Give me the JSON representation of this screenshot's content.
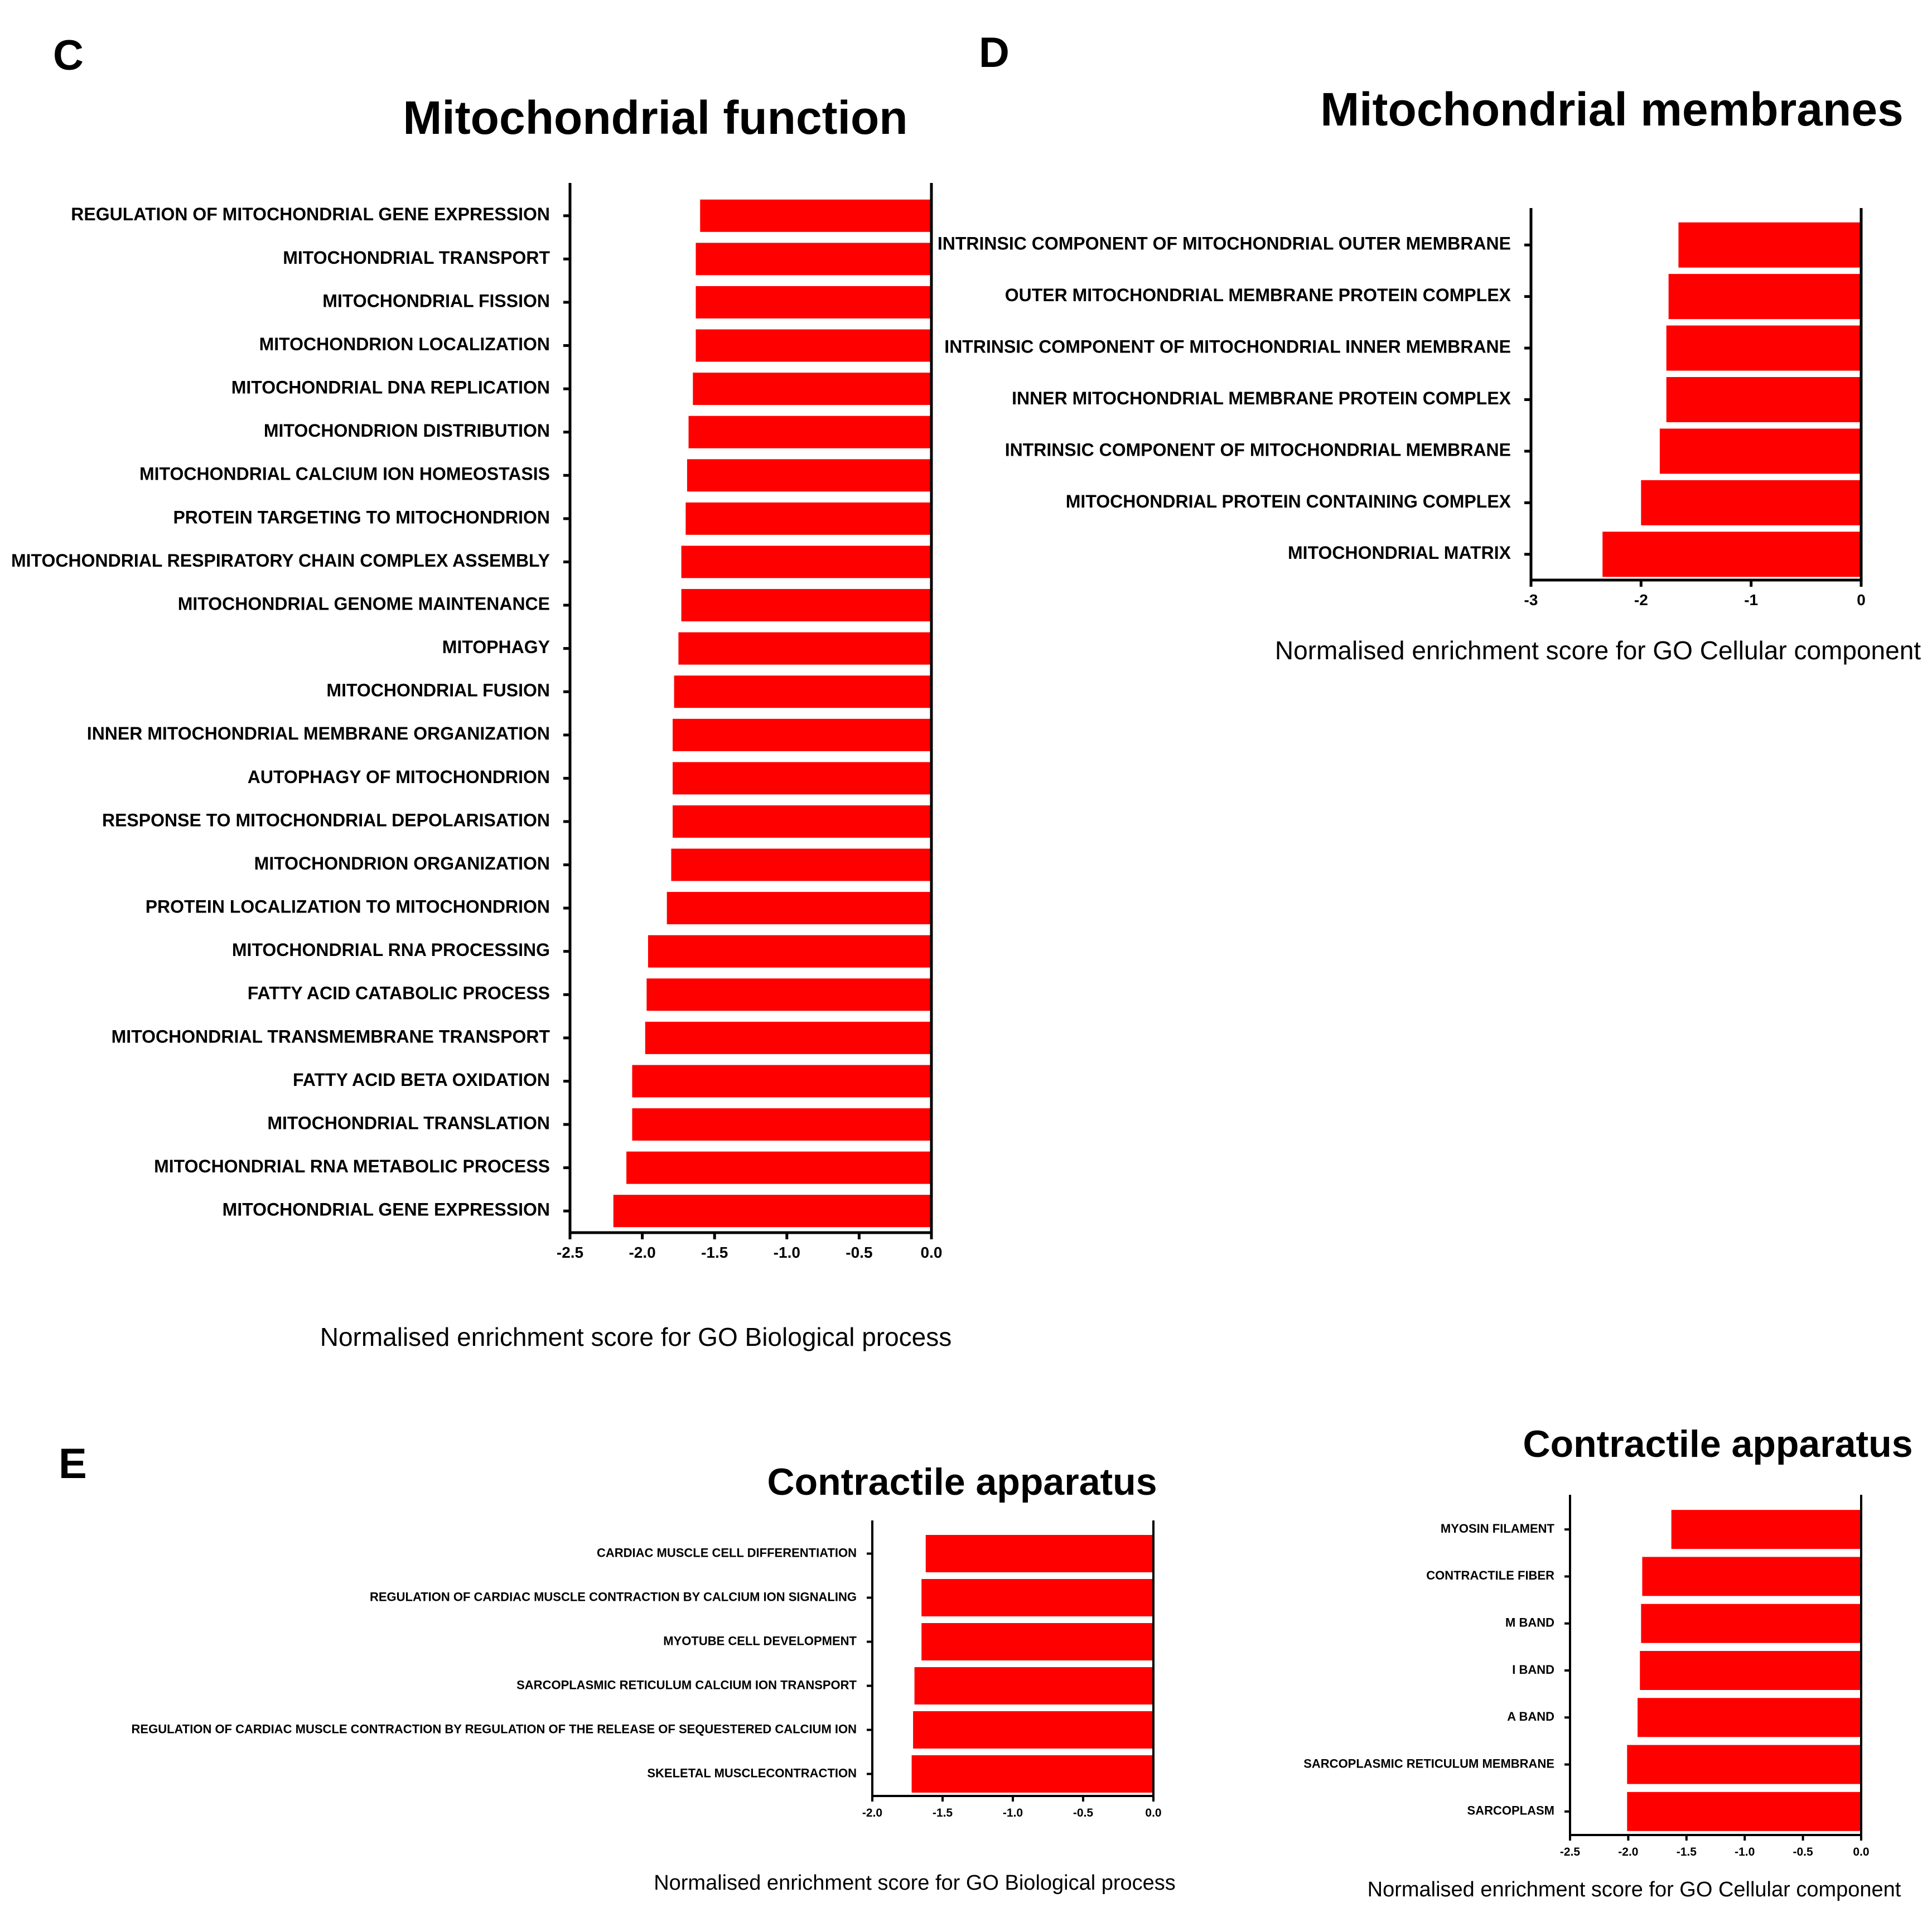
{
  "colors": {
    "bar": "#ff0000",
    "axis": "#000000",
    "background": "#ffffff"
  },
  "chart_data": [
    {
      "panel": "C",
      "type": "bar",
      "orientation": "horizontal",
      "title": "Mitochondrial function",
      "xlabel": "Normalised enrichment score for GO Biological process",
      "xlim": [
        -2.5,
        0.0
      ],
      "xticks": [
        "-2.5",
        "-2.0",
        "-1.5",
        "-1.0",
        "-0.5",
        "0.0"
      ],
      "categories": [
        "REGULATION OF MITOCHONDRIAL GENE EXPRESSION",
        "MITOCHONDRIAL TRANSPORT",
        "MITOCHONDRIAL FISSION",
        "MITOCHONDRION LOCALIZATION",
        "MITOCHONDRIAL DNA REPLICATION",
        "MITOCHONDRION DISTRIBUTION",
        "MITOCHONDRIAL CALCIUM ION HOMEOSTASIS",
        "PROTEIN TARGETING TO MITOCHONDRION",
        "MITOCHONDRIAL RESPIRATORY CHAIN COMPLEX ASSEMBLY",
        "MITOCHONDRIAL GENOME MAINTENANCE",
        "MITOPHAGY",
        "MITOCHONDRIAL FUSION",
        "INNER MITOCHONDRIAL MEMBRANE ORGANIZATION",
        "AUTOPHAGY OF MITOCHONDRION",
        "RESPONSE TO MITOCHONDRIAL DEPOLARISATION",
        "MITOCHONDRION ORGANIZATION",
        "PROTEIN LOCALIZATION TO MITOCHONDRION",
        "MITOCHONDRIAL RNA PROCESSING",
        "FATTY ACID CATABOLIC PROCESS",
        "MITOCHONDRIAL TRANSMEMBRANE TRANSPORT",
        "FATTY ACID BETA OXIDATION",
        "MITOCHONDRIAL TRANSLATION",
        "MITOCHONDRIAL RNA METABOLIC PROCESS",
        "MITOCHONDRIAL GENE EXPRESSION"
      ],
      "values": [
        -1.6,
        -1.63,
        -1.63,
        -1.63,
        -1.65,
        -1.68,
        -1.69,
        -1.7,
        -1.73,
        -1.73,
        -1.75,
        -1.78,
        -1.79,
        -1.79,
        -1.79,
        -1.8,
        -1.83,
        -1.96,
        -1.97,
        -1.98,
        -2.07,
        -2.07,
        -2.11,
        -2.2
      ]
    },
    {
      "panel": "D",
      "type": "bar",
      "orientation": "horizontal",
      "title": "Mitochondrial membranes",
      "xlabel": "Normalised enrichment score for GO  Cellular component",
      "xlim": [
        -3,
        0
      ],
      "xticks": [
        "-3",
        "-2",
        "-1",
        "0"
      ],
      "categories": [
        "INTRINSIC COMPONENT OF MITOCHONDRIAL OUTER MEMBRANE",
        "OUTER MITOCHONDRIAL MEMBRANE PROTEIN COMPLEX",
        "INTRINSIC COMPONENT OF MITOCHONDRIAL INNER MEMBRANE",
        "INNER MITOCHONDRIAL MEMBRANE PROTEIN COMPLEX",
        "INTRINSIC COMPONENT OF MITOCHONDRIAL MEMBRANE",
        "MITOCHONDRIAL PROTEIN CONTAINING COMPLEX",
        "MITOCHONDRIAL MATRIX"
      ],
      "values": [
        -1.66,
        -1.75,
        -1.77,
        -1.77,
        -1.83,
        -2.0,
        -2.35
      ]
    },
    {
      "panel": "E",
      "type": "bar",
      "orientation": "horizontal",
      "title": "Contractile apparatus",
      "xlabel": "Normalised enrichment score for GO Biological process",
      "xlim": [
        -2.0,
        0.0
      ],
      "xticks": [
        "-2.0",
        "-1.5",
        "-1.0",
        "-0.5",
        "0.0"
      ],
      "categories": [
        "CARDIAC MUSCLE CELL DIFFERENTIATION",
        "REGULATION OF CARDIAC MUSCLE CONTRACTION BY CALCIUM ION SIGNALING",
        "MYOTUBE CELL DEVELOPMENT",
        "SARCOPLASMIC RETICULUM CALCIUM ION TRANSPORT",
        "REGULATION OF CARDIAC MUSCLE CONTRACTION BY REGULATION OF THE RELEASE OF SEQUESTERED CALCIUM ION",
        "SKELETAL MUSCLECONTRACTION"
      ],
      "values": [
        -1.62,
        -1.65,
        -1.65,
        -1.7,
        -1.71,
        -1.72
      ]
    },
    {
      "panel": "",
      "type": "bar",
      "orientation": "horizontal",
      "title": "Contractile apparatus",
      "xlabel": "Normalised enrichment score for GO  Cellular component",
      "xlim": [
        -2.5,
        0.0
      ],
      "xticks": [
        "-2.5",
        "-2.0",
        "-1.5",
        "-1.0",
        "-0.5",
        "0.0"
      ],
      "categories": [
        "MYOSIN FILAMENT",
        "CONTRACTILE FIBER",
        "M BAND",
        "I BAND",
        "A BAND",
        "SARCOPLASMIC RETICULUM MEMBRANE",
        "SARCOPLASM"
      ],
      "values": [
        -1.63,
        -1.88,
        -1.89,
        -1.9,
        -1.92,
        -2.01,
        -2.01
      ]
    }
  ]
}
